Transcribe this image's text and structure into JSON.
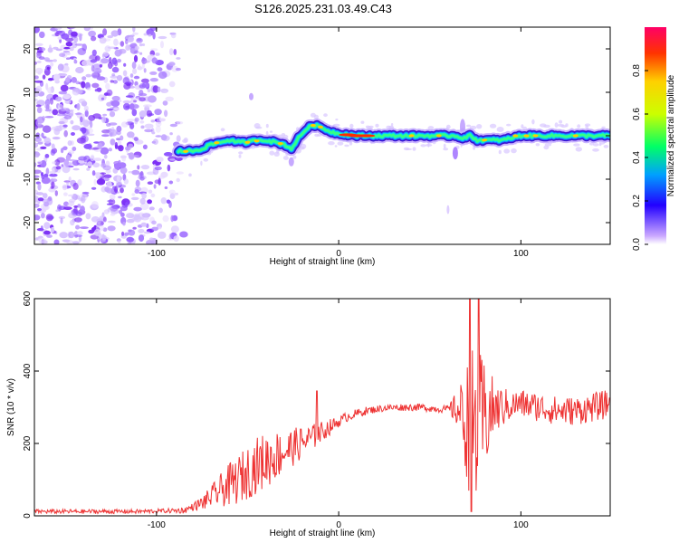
{
  "title": "S126.2025.231.03.49.C43",
  "chart_data": [
    {
      "type": "heatmap",
      "name": "spectrogram",
      "xlabel": "Height of straight line (km)",
      "ylabel": "Frequency (Hz)",
      "xlim": [
        -167,
        149
      ],
      "ylim": [
        -25,
        25
      ],
      "x_ticks": [
        -100,
        0,
        100
      ],
      "y_ticks": [
        -20,
        -10,
        0,
        10,
        20
      ],
      "colorbar": {
        "label": "Normalized spectral amplitude",
        "range": [
          0,
          1
        ],
        "ticks": [
          0.0,
          0.2,
          0.4,
          0.6,
          0.8
        ]
      },
      "ridge": {
        "x": [
          -88,
          -80,
          -75,
          -70,
          -65,
          -60,
          -55,
          -50,
          -45,
          -40,
          -35,
          -30,
          -26,
          -22,
          -18,
          -14,
          -10,
          -5,
          0,
          10,
          20,
          40,
          60,
          64,
          68,
          72,
          76,
          80,
          90,
          100,
          120,
          149
        ],
        "frequency": [
          -3.5,
          -3.5,
          -3,
          -2,
          -1.5,
          -1,
          -1.5,
          -1.5,
          -1,
          -1,
          -1.5,
          -2,
          -3,
          -0.5,
          1.5,
          2.5,
          2,
          1,
          0.5,
          0,
          0,
          0,
          0,
          0,
          -0.5,
          0,
          -1,
          -1,
          -1,
          0,
          0,
          0
        ]
      }
    },
    {
      "type": "line",
      "name": "snr",
      "xlabel": "Height of straight line (km)",
      "ylabel": "SNR (10 * v/v)",
      "xlim": [
        -167,
        149
      ],
      "ylim": [
        0,
        600
      ],
      "x_ticks": [
        -100,
        0,
        100
      ],
      "y_ticks": [
        0,
        200,
        400,
        600
      ],
      "color": "#ee3333",
      "trend": {
        "x": [
          -167,
          -110,
          -85,
          -75,
          -65,
          -55,
          -45,
          -35,
          -25,
          -15,
          -5,
          5,
          15,
          25,
          35,
          45,
          55,
          65,
          68,
          72,
          76,
          80,
          84,
          90,
          100,
          110,
          120,
          130,
          140,
          149
        ],
        "y": [
          12,
          12,
          15,
          35,
          70,
          100,
          140,
          165,
          190,
          215,
          245,
          275,
          290,
          298,
          300,
          300,
          295,
          295,
          280,
          250,
          240,
          270,
          290,
          300,
          310,
          300,
          290,
          290,
          300,
          310
        ]
      },
      "noise_amplitude": {
        "x": [
          -167,
          -95,
          -80,
          -70,
          -60,
          -50,
          -40,
          -30,
          -20,
          -10,
          0,
          20,
          60,
          66,
          70,
          75,
          80,
          86,
          95,
          149
        ],
        "y": [
          6,
          6,
          10,
          30,
          60,
          75,
          80,
          60,
          45,
          30,
          15,
          10,
          10,
          60,
          160,
          250,
          160,
          70,
          40,
          40
        ]
      },
      "peaks": [
        {
          "x": -12,
          "y": 345
        },
        {
          "x": 72,
          "y": 600
        },
        {
          "x": 77,
          "y": 600
        },
        {
          "x": 73,
          "y": 12
        }
      ]
    }
  ]
}
